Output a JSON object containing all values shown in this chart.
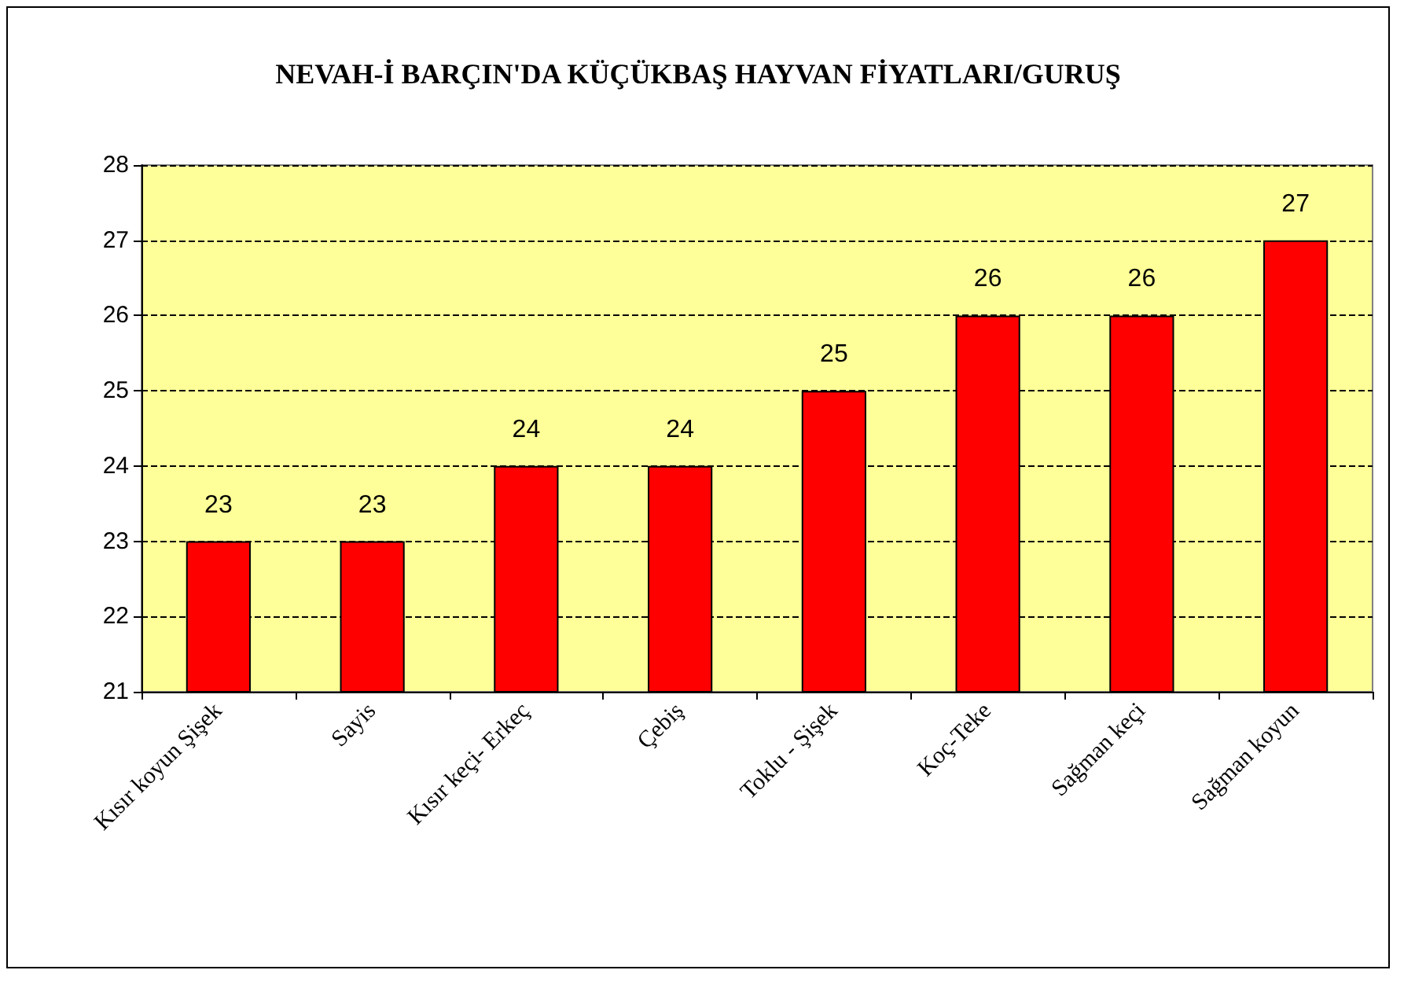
{
  "chart_data": {
    "type": "bar",
    "title": "NEVAH-İ BARÇIN'DA KÜÇÜKBAŞ HAYVAN FİYATLARI/GURUŞ",
    "categories": [
      "Kısır koyun Şişek",
      "Sayis",
      "Kısır keçi- Erkeç",
      "Çebiş",
      "Toklu - Şişek",
      "Koç-Teke",
      "Sağman keçi",
      "Sağman koyun"
    ],
    "values": [
      23,
      23,
      24,
      24,
      25,
      26,
      26,
      27
    ],
    "color": "#ff0000",
    "ylim": [
      21,
      28
    ],
    "yticks": [
      21,
      22,
      23,
      24,
      25,
      26,
      27,
      28
    ],
    "grid": "y",
    "line_style": "dashed",
    "data_labels": true
  }
}
